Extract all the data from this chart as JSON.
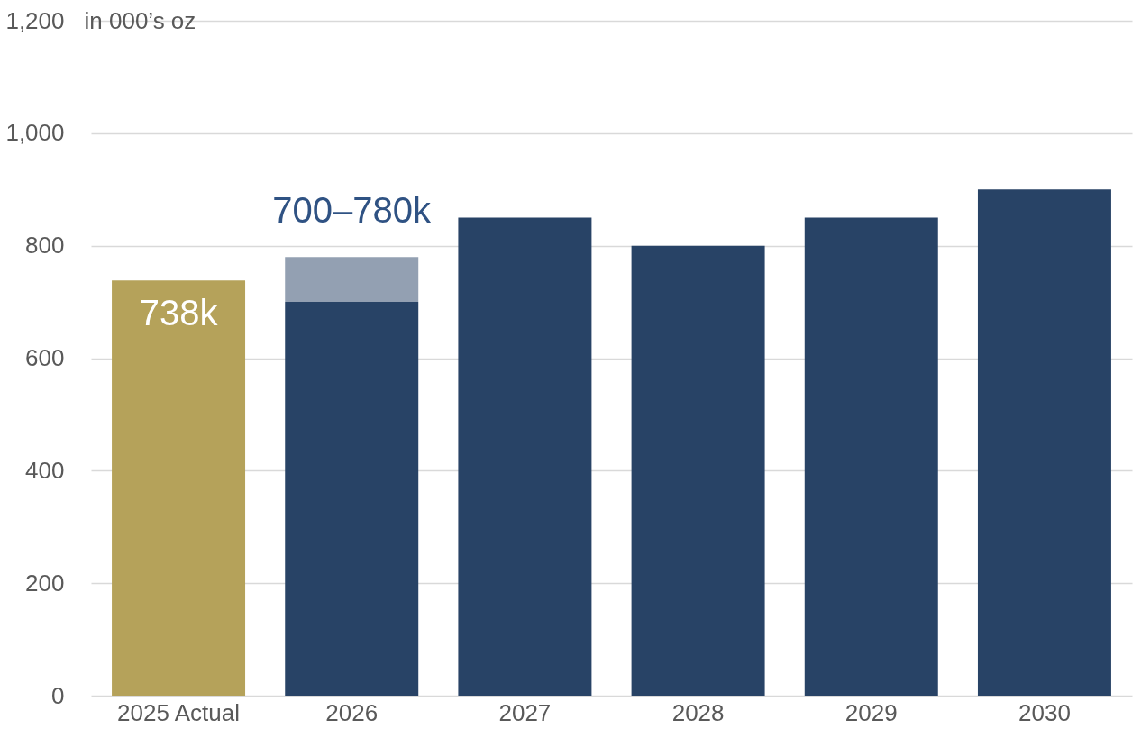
{
  "chart_data": {
    "type": "bar",
    "stacked": true,
    "ylabel": "in 000’s oz",
    "categories": [
      "2025 Actual",
      "2026",
      "2027",
      "2028",
      "2029",
      "2030"
    ],
    "series": [
      {
        "colors": [
          "#b5a25a",
          "#284366",
          "#284366",
          "#284366",
          "#284366",
          "#284366"
        ],
        "values": [
          738,
          700,
          850,
          800,
          850,
          900
        ],
        "value_labels": [
          "738k",
          null,
          null,
          null,
          null,
          null
        ]
      },
      {
        "color": "#93a0b2",
        "values": [
          null,
          80,
          null,
          null,
          null,
          null
        ]
      }
    ],
    "annotations": [
      {
        "text": "700–780k",
        "x": "2026",
        "y": 780
      }
    ],
    "ylim": [
      0,
      1200
    ],
    "yticks": [
      0,
      200,
      400,
      600,
      800,
      {
        "value": 1000,
        "label": "1,000"
      },
      {
        "value": 1200,
        "label": "1,200"
      }
    ],
    "grid": "y"
  }
}
